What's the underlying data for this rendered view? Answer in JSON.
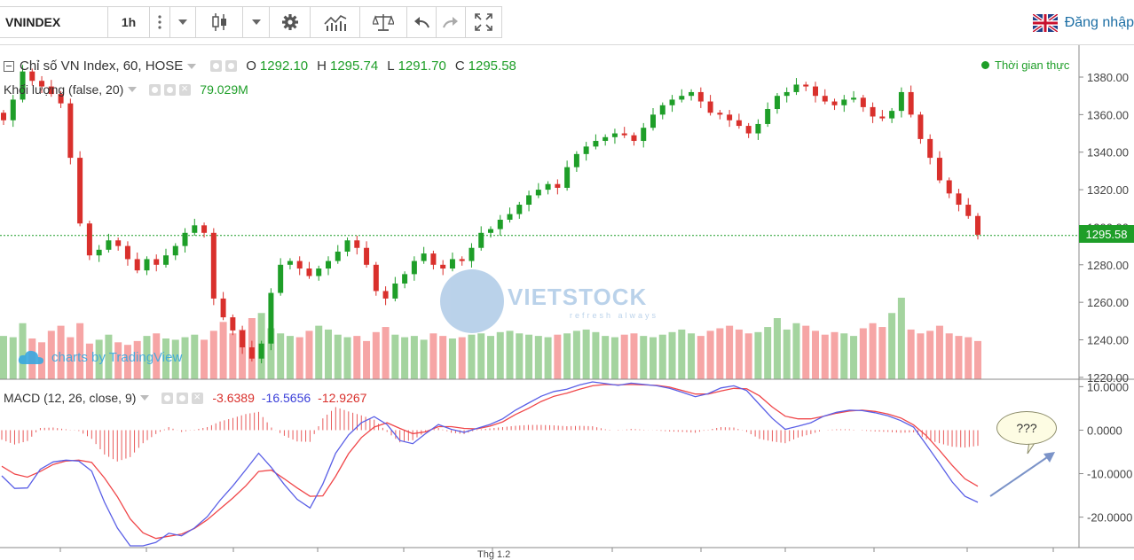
{
  "toolbar": {
    "symbol": "VNINDEX",
    "interval": "1h",
    "login_label": "Đăng nhập",
    "icons": [
      "more-vertical-icon",
      "chevron-down-icon",
      "candlestick-icon",
      "chevron-down-icon",
      "gear-icon",
      "indicators-icon",
      "compare-scale-icon",
      "undo-icon",
      "redo-icon",
      "fullscreen-icon"
    ]
  },
  "legend": {
    "title": "Chỉ số VN Index, 60, HOSE",
    "open_label": "O",
    "open": "1292.10",
    "high_label": "H",
    "high": "1295.74",
    "low_label": "L",
    "low": "1291.70",
    "close_label": "C",
    "close": "1295.58",
    "volume_title": "Khối lượng (false, 20)",
    "volume_value": "79.029M",
    "macd_title": "MACD (12, 26, close, 9)",
    "macd_hist": "-3.6389",
    "macd_line": "-16.5656",
    "macd_signal": "-12.9267"
  },
  "realtime_label": "Thời gian thực",
  "watermark": {
    "brand": "VIETSTOCK",
    "sub": "refresh always"
  },
  "tradingview_label": "charts by TradingView",
  "bubble_text": "???",
  "bottom_label": "Thg 1.2",
  "colors": {
    "up": "#1e9e28",
    "down": "#d9302c",
    "macd_line": "#5a5fe6",
    "signal_line": "#f0474a",
    "last_price": "#1e9e28"
  },
  "chart_data": [
    {
      "type": "candlestick",
      "title": "Chỉ số VN Index, 60, HOSE",
      "y_ticks": [
        "1380.00",
        "1360.00",
        "1340.00",
        "1320.00",
        "1300.00",
        "1280.00",
        "1260.00",
        "1240.00",
        "1220.00"
      ],
      "ylim": [
        1219,
        1397
      ],
      "last_price": "1295.58",
      "series": [
        {
          "name": "close",
          "values": [
            1357,
            1368,
            1383,
            1378,
            1375,
            1371,
            1366,
            1337,
            1302,
            1285,
            1288,
            1293,
            1290,
            1283,
            1277,
            1283,
            1280,
            1285,
            1290,
            1297,
            1301,
            1297,
            1262,
            1252,
            1245,
            1236,
            1230,
            1238,
            1265,
            1280,
            1282,
            1278,
            1274,
            1278,
            1282,
            1287,
            1293,
            1289,
            1280,
            1266,
            1262,
            1270,
            1275,
            1282,
            1286,
            1280,
            1278,
            1283,
            1282,
            1289,
            1297,
            1299,
            1304,
            1307,
            1312,
            1317,
            1320,
            1323,
            1321,
            1332,
            1339,
            1343,
            1346,
            1348,
            1350,
            1349,
            1346,
            1353,
            1360,
            1365,
            1368,
            1370,
            1372,
            1367,
            1361,
            1360,
            1357,
            1354,
            1350,
            1355,
            1363,
            1370,
            1372,
            1376,
            1375,
            1370,
            1367,
            1365,
            1368,
            1369,
            1364,
            1359,
            1358,
            1362,
            1372,
            1360,
            1347,
            1337,
            1325,
            1318,
            1312,
            1306,
            1296
          ]
        }
      ],
      "volume": {
        "title": "Khối lượng (false, 20)",
        "last_value": "79.029M",
        "values": [
          34,
          33,
          44,
          32,
          29,
          38,
          42,
          33,
          44,
          28,
          31,
          35,
          29,
          27,
          30,
          34,
          36,
          32,
          31,
          33,
          35,
          31,
          38,
          45,
          36,
          39,
          48,
          52,
          40,
          36,
          34,
          33,
          38,
          42,
          39,
          35,
          33,
          34,
          30,
          37,
          41,
          35,
          33,
          34,
          31,
          36,
          34,
          32,
          33,
          35,
          36,
          34,
          37,
          38,
          36,
          35,
          34,
          33,
          35,
          36,
          38,
          39,
          37,
          34,
          33,
          35,
          36,
          34,
          33,
          35,
          37,
          39,
          36,
          34,
          38,
          40,
          42,
          39,
          36,
          37,
          41,
          48,
          39,
          44,
          42,
          38,
          35,
          37,
          36,
          34,
          40,
          44,
          41,
          52,
          64,
          39,
          36,
          38,
          42,
          36,
          34,
          33,
          30
        ]
      }
    },
    {
      "type": "line",
      "title": "MACD (12, 26, close, 9)",
      "y_ticks": [
        "10.0000",
        "0.0000",
        "-10.0000",
        "-20.0000"
      ],
      "ylim": [
        -27,
        11.5
      ],
      "series": [
        {
          "name": "macd",
          "values": [
            -10.5,
            -13.4,
            -13.3,
            -9,
            -7.3,
            -6.9,
            -7.1,
            -9.4,
            -16.6,
            -22.5,
            -26.6,
            -26.6,
            -25.8,
            -23.7,
            -24.3,
            -22.5,
            -19.9,
            -16.1,
            -12.8,
            -9.1,
            -5.3,
            -8.6,
            -12.5,
            -15.9,
            -17.9,
            -12.4,
            -5.3,
            -1.1,
            1.7,
            3.1,
            1.3,
            -2.4,
            -3.1,
            -0.8,
            1.3,
            0.2,
            -0.5,
            0.4,
            1.3,
            2.6,
            4.6,
            6.2,
            7.8,
            8.9,
            9.4,
            10.4,
            11.1,
            10.7,
            10.3,
            10.8,
            10.5,
            10.2,
            9.6,
            8.7,
            7.7,
            8.4,
            9.7,
            10.2,
            9.1,
            5.9,
            2.7,
            0.2,
            0.9,
            1.7,
            3.2,
            4.1,
            4.6,
            4.5,
            4,
            3.3,
            2.2,
            0.7,
            -3.4,
            -7.6,
            -11.9,
            -15.2,
            -16.6
          ]
        },
        {
          "name": "signal",
          "values": [
            -8.3,
            -10.1,
            -10.8,
            -9.5,
            -7.9,
            -7.1,
            -6.9,
            -7.4,
            -11,
            -15.3,
            -20.4,
            -23.6,
            -24.9,
            -24.4,
            -23.9,
            -22.6,
            -20.6,
            -18.1,
            -15.6,
            -12.8,
            -9.5,
            -9.2,
            -11.2,
            -13.3,
            -15.2,
            -15.1,
            -10.6,
            -5.4,
            -1.7,
            0.7,
            1.7,
            0.4,
            -0.8,
            -0.4,
            0.8,
            0.8,
            0.4,
            0.3,
            0.9,
            1.9,
            3.6,
            5,
            6.6,
            7.8,
            8.5,
            9.4,
            10.2,
            10.5,
            10.4,
            10.5,
            10.4,
            10.3,
            9.9,
            9.1,
            8.3,
            8.3,
            9,
            9.6,
            9.5,
            7.9,
            5.3,
            3.2,
            2.6,
            2.6,
            3.2,
            3.9,
            4.4,
            4.6,
            4.3,
            3.7,
            2.8,
            1.2,
            -1.3,
            -4.6,
            -8.1,
            -11.2,
            -12.9
          ]
        },
        {
          "name": "histogram",
          "values": [
            -2.2,
            -3.3,
            -2.5,
            0.5,
            0.6,
            0.2,
            -0.2,
            -2,
            -5.6,
            -7.2,
            -6.2,
            -3,
            -0.9,
            0.7,
            -0.4,
            0.1,
            0.7,
            2,
            2.8,
            3.7,
            4.2,
            0.6,
            -1.3,
            -2.6,
            -2.7,
            2.7,
            5.3,
            4.3,
            3.4,
            2.4,
            -0.4,
            -2.8,
            -2.3,
            -0.4,
            0.5,
            -0.6,
            -0.9,
            0.1,
            0.4,
            0.7,
            1,
            1.2,
            1.2,
            1.1,
            0.9,
            1,
            0.9,
            0.2,
            -0.1,
            0.3,
            0.1,
            -0.1,
            -0.3,
            -0.4,
            -0.6,
            0.1,
            0.7,
            0.6,
            -0.4,
            -2,
            -2.6,
            -3,
            -1.7,
            -0.9,
            0,
            0.2,
            0.2,
            -0.1,
            -0.3,
            -0.4,
            -0.6,
            -0.5,
            -2.1,
            -3,
            -3.8,
            -4,
            -3.6
          ]
        }
      ]
    }
  ]
}
